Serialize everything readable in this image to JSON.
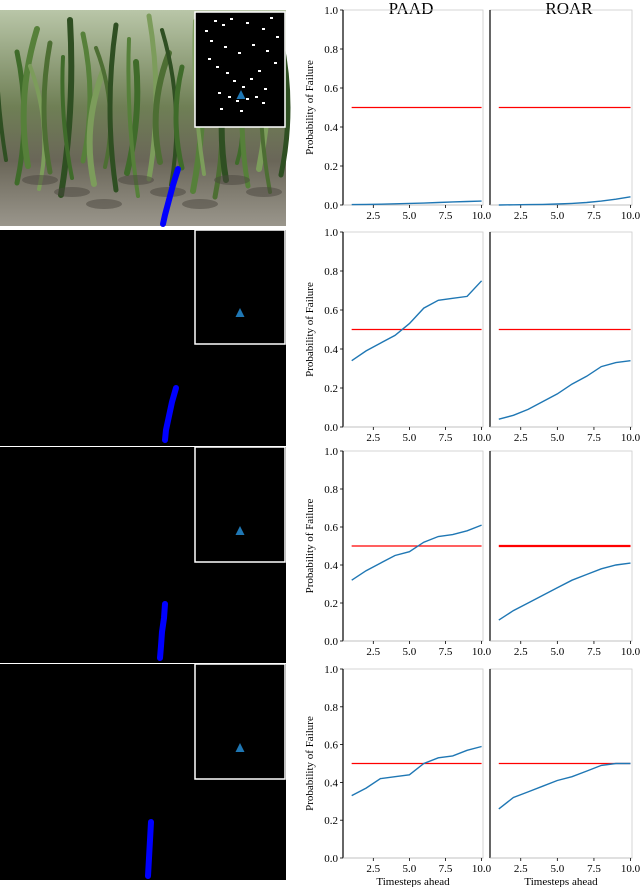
{
  "column_headers": {
    "paad": "PAAD",
    "roar": "ROAR"
  },
  "colors": {
    "series_line": "#1f77b4",
    "threshold_line": "#ff0000",
    "path_marker": "#0000ff",
    "goal_marker": "#1f77b4",
    "panel_background": "#000000",
    "inset_border": "#ffffff"
  },
  "camera_panels": [
    {
      "view": "rgb-camera-frame",
      "inset": "lidar-point-cloud",
      "goal_icon": "triangle-icon"
    },
    {
      "view": "masked-frame",
      "inset": "masked-inset",
      "goal_icon": "triangle-icon"
    },
    {
      "view": "masked-frame",
      "inset": "masked-inset",
      "goal_icon": "triangle-icon"
    },
    {
      "view": "masked-frame",
      "inset": "masked-inset",
      "goal_icon": "triangle-icon"
    }
  ],
  "chart_data": {
    "type": "line",
    "ylabel": "Probability of Failure",
    "xlabel": "Timesteps ahead",
    "x": [
      1,
      2,
      3,
      4,
      5,
      6,
      7,
      8,
      9,
      10
    ],
    "xlim": [
      0.4,
      10.1
    ],
    "ylim": [
      0,
      1.0
    ],
    "xticks": [
      "2.5",
      "5.0",
      "7.5",
      "10.0"
    ],
    "yticks": [
      "0.0",
      "0.2",
      "0.4",
      "0.6",
      "0.8",
      "1.0"
    ],
    "threshold": 0.5,
    "rows": [
      {
        "paad": [
          0.002,
          0.003,
          0.004,
          0.006,
          0.008,
          0.01,
          0.013,
          0.016,
          0.018,
          0.02
        ],
        "roar": [
          0.0,
          0.001,
          0.002,
          0.003,
          0.005,
          0.008,
          0.013,
          0.02,
          0.03,
          0.042
        ]
      },
      {
        "paad": [
          0.34,
          0.39,
          0.43,
          0.47,
          0.53,
          0.61,
          0.65,
          0.66,
          0.67,
          0.75
        ],
        "roar": [
          0.04,
          0.06,
          0.09,
          0.13,
          0.17,
          0.22,
          0.26,
          0.31,
          0.33,
          0.34
        ]
      },
      {
        "paad": [
          0.32,
          0.37,
          0.41,
          0.45,
          0.47,
          0.52,
          0.55,
          0.56,
          0.58,
          0.61
        ],
        "roar": [
          0.11,
          0.16,
          0.2,
          0.24,
          0.28,
          0.32,
          0.35,
          0.38,
          0.4,
          0.41
        ]
      },
      {
        "paad": [
          0.33,
          0.37,
          0.42,
          0.43,
          0.44,
          0.5,
          0.53,
          0.54,
          0.57,
          0.59
        ],
        "roar": [
          0.26,
          0.32,
          0.35,
          0.38,
          0.41,
          0.43,
          0.46,
          0.49,
          0.5,
          0.5
        ]
      }
    ]
  }
}
